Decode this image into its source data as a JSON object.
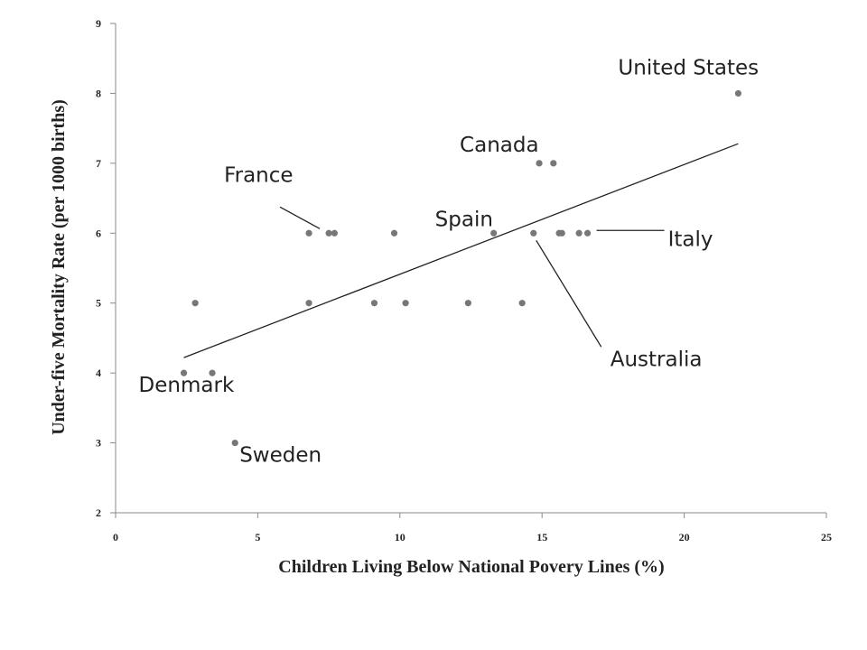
{
  "chart_data": {
    "type": "scatter",
    "xlabel": "Children Living Below National Povery Lines (%)",
    "ylabel": "Under-five Mortality Rate (per 1000 births)",
    "xlim": [
      0,
      25
    ],
    "ylim": [
      2,
      9
    ],
    "x_ticks": [
      "0",
      "5",
      "10",
      "15",
      "20",
      "25"
    ],
    "y_ticks": [
      "2",
      "3",
      "4",
      "5",
      "6",
      "7",
      "8",
      "9"
    ],
    "grid": false,
    "points": [
      {
        "x": 2.4,
        "y": 4
      },
      {
        "x": 3.4,
        "y": 4
      },
      {
        "x": 4.2,
        "y": 3
      },
      {
        "x": 2.8,
        "y": 5
      },
      {
        "x": 6.8,
        "y": 6
      },
      {
        "x": 7.5,
        "y": 6
      },
      {
        "x": 7.7,
        "y": 6
      },
      {
        "x": 9.8,
        "y": 6
      },
      {
        "x": 6.8,
        "y": 5
      },
      {
        "x": 9.1,
        "y": 5
      },
      {
        "x": 10.2,
        "y": 5
      },
      {
        "x": 12.4,
        "y": 5
      },
      {
        "x": 14.3,
        "y": 5
      },
      {
        "x": 13.3,
        "y": 6
      },
      {
        "x": 14.7,
        "y": 6
      },
      {
        "x": 15.6,
        "y": 6
      },
      {
        "x": 15.7,
        "y": 6
      },
      {
        "x": 16.3,
        "y": 6
      },
      {
        "x": 16.6,
        "y": 6
      },
      {
        "x": 14.9,
        "y": 7
      },
      {
        "x": 15.4,
        "y": 7
      },
      {
        "x": 21.9,
        "y": 8
      }
    ],
    "trendline": {
      "x": [
        2.4,
        21.9
      ],
      "y": [
        4.22,
        7.28
      ]
    },
    "annotations": [
      {
        "text": "United States",
        "x": 21.9,
        "y": 8
      },
      {
        "text": "Canada",
        "x": 14.9,
        "y": 7
      },
      {
        "text": "France",
        "x": 6.8,
        "y": 6
      },
      {
        "text": "Spain",
        "x": 13.3,
        "y": 6
      },
      {
        "text": "Italy",
        "x": 16.6,
        "y": 6
      },
      {
        "text": "Australia",
        "x": 14.7,
        "y": 6
      },
      {
        "text": "Denmark",
        "x": 2.4,
        "y": 4
      },
      {
        "text": "Sweden",
        "x": 4.2,
        "y": 3
      }
    ]
  }
}
